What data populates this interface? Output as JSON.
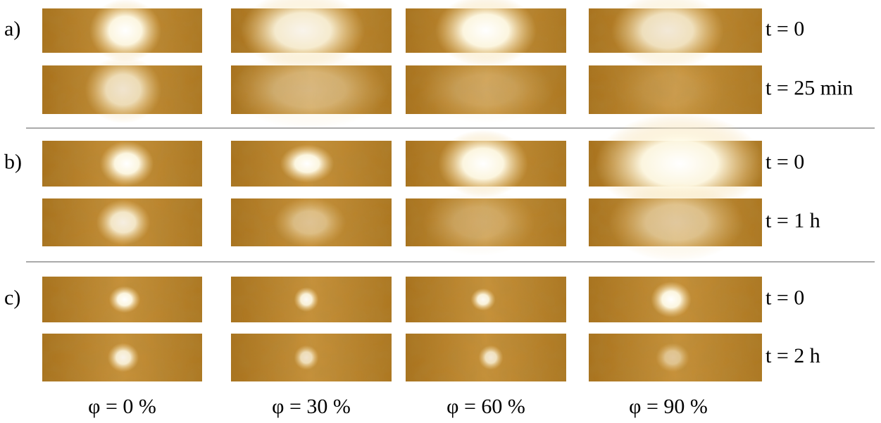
{
  "panels": [
    {
      "label": "a)",
      "rows": [
        {
          "time": "t = 0"
        },
        {
          "time": "t = 25 min"
        }
      ]
    },
    {
      "label": "b)",
      "rows": [
        {
          "time": "t = 0"
        },
        {
          "time": "t = 1 h"
        }
      ]
    },
    {
      "label": "c)",
      "rows": [
        {
          "time": "t = 0"
        },
        {
          "time": "t = 2 h"
        }
      ]
    }
  ],
  "columns": [
    "φ = 0 %",
    "φ = 30 %",
    "φ = 60 %",
    "φ = 90 %"
  ]
}
